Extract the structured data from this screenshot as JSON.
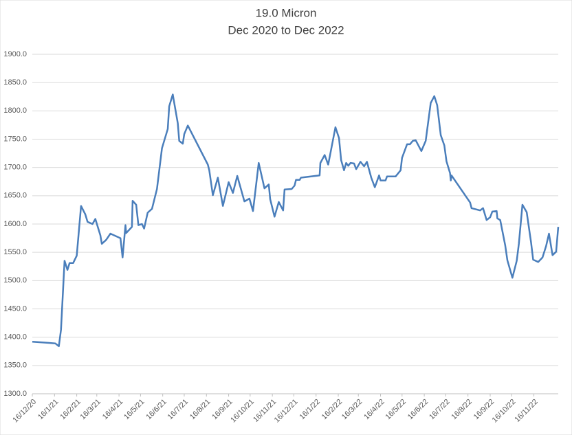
{
  "chart_data": {
    "type": "line",
    "title": "19.0 Micron",
    "subtitle": "Dec 2020 to Dec 2022",
    "color": "#4a7ebb",
    "grid": true,
    "x": [
      "2020-12-16",
      "2021-01-07",
      "2021-01-17",
      "2021-01-22",
      "2021-01-25",
      "2021-01-30",
      "2021-02-03",
      "2021-02-06",
      "2021-02-11",
      "2021-02-16",
      "2021-02-22",
      "2021-02-28",
      "2021-03-03",
      "2021-03-10",
      "2021-03-14",
      "2021-03-21",
      "2021-03-23",
      "2021-03-29",
      "2021-04-04",
      "2021-04-18",
      "2021-04-21",
      "2021-04-25",
      "2021-04-26",
      "2021-05-04",
      "2021-05-05",
      "2021-05-10",
      "2021-05-13",
      "2021-05-18",
      "2021-05-21",
      "2021-05-26",
      "2021-06-01",
      "2021-06-08",
      "2021-06-15",
      "2021-06-23",
      "2021-06-25",
      "2021-06-30",
      "2021-07-07",
      "2021-07-09",
      "2021-07-14",
      "2021-07-16",
      "2021-07-21",
      "2021-08-18",
      "2021-08-20",
      "2021-08-25",
      "2021-09-01",
      "2021-09-08",
      "2021-09-16",
      "2021-09-22",
      "2021-09-28",
      "2021-10-08",
      "2021-10-15",
      "2021-10-20",
      "2021-10-28",
      "2021-11-05",
      "2021-11-11",
      "2021-11-13",
      "2021-11-19",
      "2021-11-25",
      "2021-12-01",
      "2021-12-03",
      "2021-12-13",
      "2021-12-17",
      "2021-12-19",
      "2021-12-24",
      "2021-12-26",
      "2022-01-21",
      "2022-01-22",
      "2022-01-28",
      "2022-02-02",
      "2022-02-12",
      "2022-02-17",
      "2022-02-20",
      "2022-02-24",
      "2022-02-27",
      "2022-03-02",
      "2022-03-05",
      "2022-03-10",
      "2022-03-13",
      "2022-03-19",
      "2022-03-24",
      "2022-03-28",
      "2022-04-03",
      "2022-04-08",
      "2022-04-14",
      "2022-04-16",
      "2022-04-23",
      "2022-04-25",
      "2022-05-07",
      "2022-05-14",
      "2022-05-16",
      "2022-05-23",
      "2022-05-27",
      "2022-05-31",
      "2022-06-04",
      "2022-06-12",
      "2022-06-18",
      "2022-06-25",
      "2022-06-30",
      "2022-07-04",
      "2022-07-09",
      "2022-07-14",
      "2022-07-17",
      "2022-07-22",
      "2022-07-23",
      "2022-07-24",
      "2022-08-19",
      "2022-08-21",
      "2022-09-02",
      "2022-09-06",
      "2022-09-11",
      "2022-09-16",
      "2022-09-19",
      "2022-09-25",
      "2022-09-26",
      "2022-09-30",
      "2022-10-07",
      "2022-10-10",
      "2022-10-17",
      "2022-10-23",
      "2022-10-26",
      "2022-10-31",
      "2022-11-06",
      "2022-11-12",
      "2022-11-15",
      "2022-11-22",
      "2022-11-28",
      "2022-12-03",
      "2022-12-07",
      "2022-12-12",
      "2022-12-17",
      "2022-12-20"
    ],
    "values": [
      1392,
      1390,
      1389,
      1384,
      1413,
      1535,
      1519,
      1531,
      1531,
      1544,
      1632,
      1617,
      1604,
      1600,
      1609,
      1580,
      1565,
      1572,
      1583,
      1575,
      1541,
      1598,
      1584,
      1595,
      1641,
      1634,
      1598,
      1600,
      1592,
      1620,
      1627,
      1662,
      1734,
      1768,
      1808,
      1829,
      1778,
      1747,
      1742,
      1759,
      1774,
      1705,
      1695,
      1651,
      1682,
      1632,
      1674,
      1655,
      1685,
      1640,
      1645,
      1623,
      1708,
      1663,
      1670,
      1644,
      1613,
      1639,
      1624,
      1661,
      1662,
      1668,
      1678,
      1678,
      1682,
      1686,
      1708,
      1722,
      1705,
      1771,
      1752,
      1713,
      1695,
      1708,
      1703,
      1708,
      1707,
      1697,
      1710,
      1702,
      1710,
      1682,
      1665,
      1686,
      1677,
      1677,
      1684,
      1684,
      1695,
      1717,
      1741,
      1741,
      1747,
      1748,
      1729,
      1747,
      1814,
      1826,
      1810,
      1757,
      1739,
      1711,
      1690,
      1677,
      1686,
      1638,
      1628,
      1624,
      1628,
      1607,
      1612,
      1622,
      1623,
      1610,
      1607,
      1562,
      1536,
      1505,
      1535,
      1565,
      1634,
      1621,
      1568,
      1537,
      1533,
      1541,
      1561,
      1583,
      1545,
      1551,
      1595
    ],
    "xlim": [
      "2020-12-16",
      "2022-12-20"
    ],
    "xticks": [
      {
        "value": "2020-12-16",
        "label": "16/12/20"
      },
      {
        "value": "2021-01-16",
        "label": "16/1/21"
      },
      {
        "value": "2021-02-16",
        "label": "16/2/21"
      },
      {
        "value": "2021-03-16",
        "label": "16/3/21"
      },
      {
        "value": "2021-04-16",
        "label": "16/4/21"
      },
      {
        "value": "2021-05-16",
        "label": "16/5/21"
      },
      {
        "value": "2021-06-16",
        "label": "16/6/21"
      },
      {
        "value": "2021-07-16",
        "label": "16/7/21"
      },
      {
        "value": "2021-08-16",
        "label": "16/8/21"
      },
      {
        "value": "2021-09-16",
        "label": "16/9/21"
      },
      {
        "value": "2021-10-16",
        "label": "16/10/21"
      },
      {
        "value": "2021-11-16",
        "label": "16/11/21"
      },
      {
        "value": "2021-12-16",
        "label": "16/12/21"
      },
      {
        "value": "2022-01-16",
        "label": "16/1/22"
      },
      {
        "value": "2022-02-16",
        "label": "16/2/22"
      },
      {
        "value": "2022-03-16",
        "label": "16/3/22"
      },
      {
        "value": "2022-04-16",
        "label": "16/4/22"
      },
      {
        "value": "2022-05-16",
        "label": "16/5/22"
      },
      {
        "value": "2022-06-16",
        "label": "16/6/22"
      },
      {
        "value": "2022-07-16",
        "label": "16/7/22"
      },
      {
        "value": "2022-08-16",
        "label": "16/8/22"
      },
      {
        "value": "2022-09-16",
        "label": "16/9/22"
      },
      {
        "value": "2022-10-16",
        "label": "16/10/22"
      },
      {
        "value": "2022-11-16",
        "label": "16/11/22"
      }
    ],
    "ylim": [
      1300,
      1900
    ],
    "yticks": [
      {
        "value": 1300,
        "label": "1300.0"
      },
      {
        "value": 1350,
        "label": "1350.0"
      },
      {
        "value": 1400,
        "label": "1400.0"
      },
      {
        "value": 1450,
        "label": "1450.0"
      },
      {
        "value": 1500,
        "label": "1500.0"
      },
      {
        "value": 1550,
        "label": "1550.0"
      },
      {
        "value": 1600,
        "label": "1600.0"
      },
      {
        "value": 1650,
        "label": "1650.0"
      },
      {
        "value": 1700,
        "label": "1700.0"
      },
      {
        "value": 1750,
        "label": "1750.0"
      },
      {
        "value": 1800,
        "label": "1800.0"
      },
      {
        "value": 1850,
        "label": "1850.0"
      },
      {
        "value": 1900,
        "label": "1900.0"
      }
    ]
  }
}
